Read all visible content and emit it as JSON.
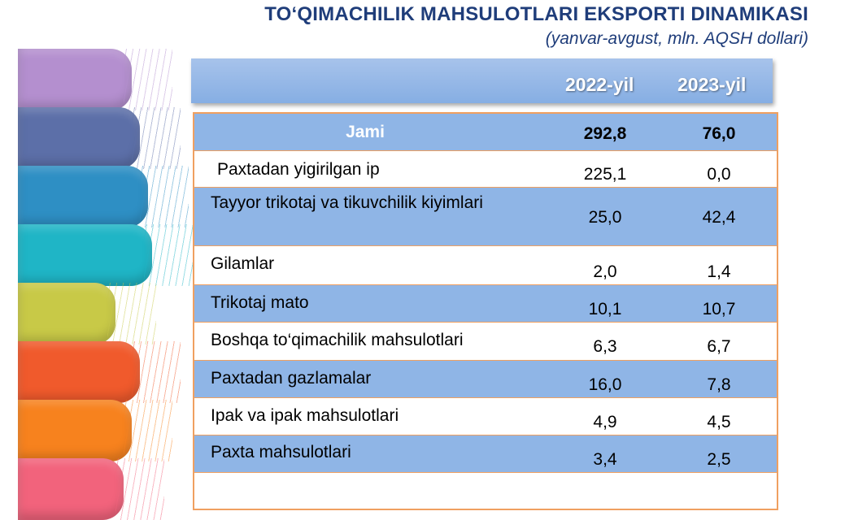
{
  "title": "TO‘QIMACHILIK MAHSULOTLARI EKSPORTI DINAMIKASI",
  "subtitle": "(yanvar-avgust, mln. AQSH dollari)",
  "colors": {
    "header": "#8fb5e6",
    "row_blue": "#8fb5e6",
    "border": "#f0a060",
    "title": "#1f3d7a",
    "scarves": [
      "#b48fcf",
      "#5c6fa8",
      "#2e8fc4",
      "#1fb5c6",
      "#c8c947",
      "#f05a2c",
      "#f7821e",
      "#f2637c"
    ]
  },
  "chart_data": {
    "type": "table",
    "columns": [
      "2022-yil",
      "2023-yil"
    ],
    "total": {
      "label": "Jami",
      "values": [
        "292,8",
        "76,0"
      ]
    },
    "rows": [
      {
        "label": "Paxtadan yigirilgan ip",
        "values": [
          "225,1",
          "0,0"
        ]
      },
      {
        "label": "Tayyor trikotaj va tikuvchilik kiyimlari",
        "values": [
          "25,0",
          "42,4"
        ]
      },
      {
        "label": "Gilamlar",
        "values": [
          "2,0",
          "1,4"
        ]
      },
      {
        "label": "Trikotaj mato",
        "values": [
          "10,1",
          "10,7"
        ]
      },
      {
        "label": "Boshqa to‘qimachilik mahsulotlari",
        "values": [
          "6,3",
          "6,7"
        ]
      },
      {
        "label": "Paxtadan gazlamalar",
        "values": [
          "16,0",
          "7,8"
        ]
      },
      {
        "label": "Ipak va ipak mahsulotlari",
        "values": [
          "4,9",
          "4,5"
        ]
      },
      {
        "label": "Paxta mahsulotlari",
        "values": [
          "3,4",
          "2,5"
        ]
      }
    ]
  }
}
